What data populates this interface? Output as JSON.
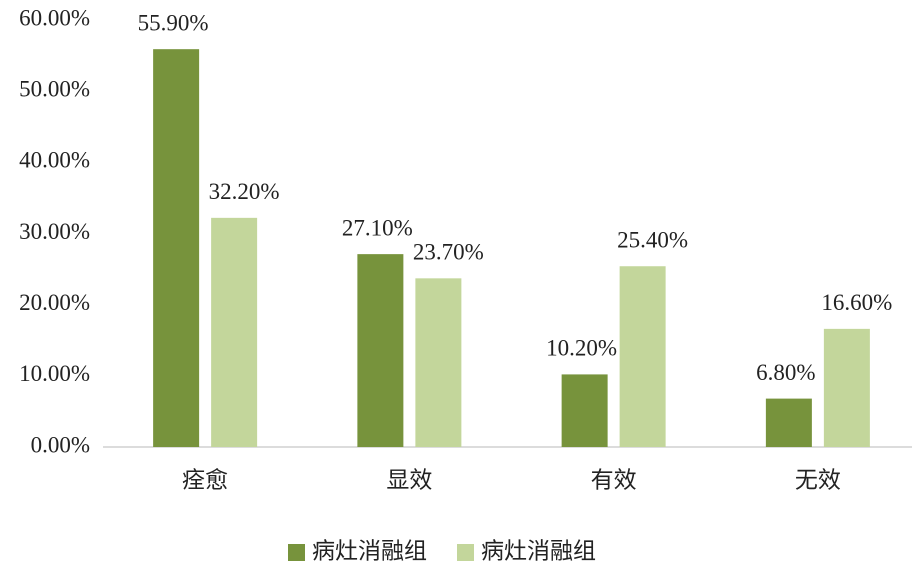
{
  "chart_data": {
    "type": "bar",
    "categories": [
      "痊愈",
      "显效",
      "有效",
      "无效"
    ],
    "series": [
      {
        "name": "病灶消融组",
        "color": "#77933c",
        "values": [
          55.9,
          27.1,
          10.2,
          6.8
        ],
        "value_labels": [
          "55.90%",
          "27.10%",
          "10.20%",
          "6.80%"
        ]
      },
      {
        "name": "病灶消融组",
        "color": "#c3d69b",
        "values": [
          32.2,
          23.7,
          25.4,
          16.6
        ],
        "value_labels": [
          "32.20%",
          "23.70%",
          "25.40%",
          "16.60%"
        ]
      }
    ],
    "ylim": [
      0,
      60
    ],
    "yticks": [
      {
        "value": 0,
        "label": "0.00%"
      },
      {
        "value": 10,
        "label": "10.00%"
      },
      {
        "value": 20,
        "label": "20.00%"
      },
      {
        "value": 30,
        "label": "30.00%"
      },
      {
        "value": 40,
        "label": "40.00%"
      },
      {
        "value": 50,
        "label": "50.00%"
      },
      {
        "value": 60,
        "label": "60.00%"
      }
    ],
    "grid": false,
    "legend": "bottom"
  }
}
